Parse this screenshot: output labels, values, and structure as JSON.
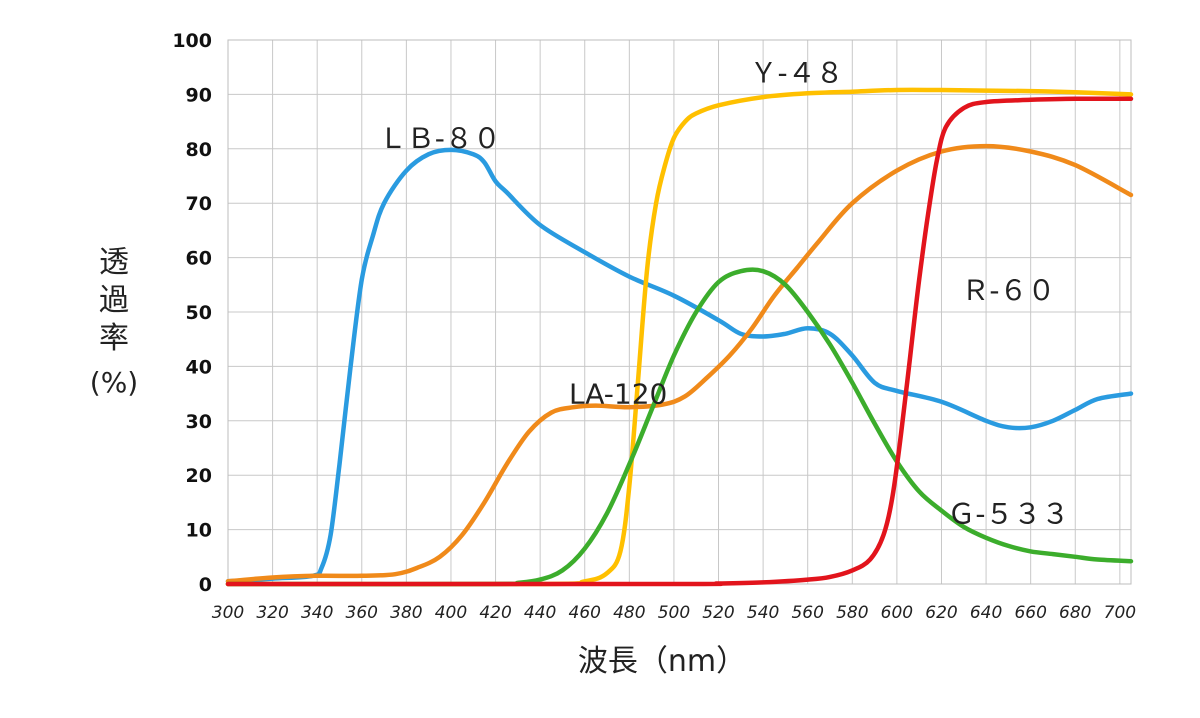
{
  "chart_data": {
    "type": "line",
    "title": "",
    "xlabel": "波長（nm）",
    "ylabel_lines": [
      "透",
      "過",
      "率",
      "(%)"
    ],
    "xlim": [
      300,
      705
    ],
    "ylim": [
      0,
      100
    ],
    "x_ticks": [
      300,
      320,
      340,
      360,
      380,
      400,
      420,
      440,
      460,
      480,
      500,
      520,
      540,
      560,
      580,
      600,
      620,
      640,
      660,
      680,
      700
    ],
    "y_ticks": [
      0,
      10,
      20,
      30,
      40,
      50,
      60,
      70,
      80,
      90,
      100
    ],
    "grid": true,
    "series": [
      {
        "name": "ＬＢ-８０",
        "color": "#2a9be0",
        "points": [
          [
            300,
            0.5
          ],
          [
            320,
            1
          ],
          [
            338,
            1.5
          ],
          [
            342,
            3
          ],
          [
            346,
            9
          ],
          [
            350,
            22
          ],
          [
            355,
            40
          ],
          [
            360,
            56
          ],
          [
            365,
            64
          ],
          [
            370,
            70
          ],
          [
            380,
            76
          ],
          [
            390,
            79
          ],
          [
            400,
            79.8
          ],
          [
            410,
            79
          ],
          [
            415,
            77.5
          ],
          [
            420,
            74
          ],
          [
            425,
            72
          ],
          [
            440,
            66
          ],
          [
            460,
            61
          ],
          [
            480,
            56.5
          ],
          [
            500,
            53
          ],
          [
            520,
            48.5
          ],
          [
            530,
            46
          ],
          [
            540,
            45.5
          ],
          [
            550,
            46
          ],
          [
            560,
            47
          ],
          [
            570,
            46
          ],
          [
            580,
            42
          ],
          [
            590,
            37
          ],
          [
            600,
            35.5
          ],
          [
            620,
            33.5
          ],
          [
            640,
            30
          ],
          [
            650,
            28.8
          ],
          [
            660,
            28.8
          ],
          [
            670,
            30
          ],
          [
            680,
            32
          ],
          [
            690,
            34
          ],
          [
            705,
            35
          ]
        ]
      },
      {
        "name": "Ｙ-４８",
        "color": "#ffc000",
        "points": [
          [
            300,
            0
          ],
          [
            440,
            0
          ],
          [
            460,
            0.5
          ],
          [
            470,
            2
          ],
          [
            476,
            6
          ],
          [
            480,
            18
          ],
          [
            484,
            38
          ],
          [
            488,
            58
          ],
          [
            492,
            70
          ],
          [
            496,
            77
          ],
          [
            500,
            82
          ],
          [
            505,
            85
          ],
          [
            510,
            86.5
          ],
          [
            520,
            88
          ],
          [
            540,
            89.5
          ],
          [
            560,
            90.2
          ],
          [
            580,
            90.5
          ],
          [
            600,
            90.8
          ],
          [
            620,
            90.8
          ],
          [
            640,
            90.7
          ],
          [
            660,
            90.6
          ],
          [
            680,
            90.4
          ],
          [
            705,
            90
          ]
        ]
      },
      {
        "name": "LA-120",
        "color": "#f08a1a",
        "points": [
          [
            300,
            0.5
          ],
          [
            320,
            1.2
          ],
          [
            340,
            1.5
          ],
          [
            360,
            1.5
          ],
          [
            375,
            1.8
          ],
          [
            385,
            3
          ],
          [
            395,
            5
          ],
          [
            405,
            9
          ],
          [
            415,
            15
          ],
          [
            425,
            22
          ],
          [
            435,
            28
          ],
          [
            445,
            31.5
          ],
          [
            455,
            32.5
          ],
          [
            465,
            32.8
          ],
          [
            480,
            32.5
          ],
          [
            495,
            33
          ],
          [
            505,
            34.5
          ],
          [
            515,
            38
          ],
          [
            525,
            42
          ],
          [
            535,
            47
          ],
          [
            545,
            53
          ],
          [
            555,
            58
          ],
          [
            565,
            63
          ],
          [
            580,
            70
          ],
          [
            600,
            76
          ],
          [
            620,
            79.5
          ],
          [
            640,
            80.5
          ],
          [
            660,
            79.5
          ],
          [
            680,
            77
          ],
          [
            705,
            71.5
          ]
        ]
      },
      {
        "name": "Ｇ-５３３",
        "color": "#3cad2c",
        "points": [
          [
            300,
            0
          ],
          [
            420,
            0
          ],
          [
            430,
            0.2
          ],
          [
            440,
            0.8
          ],
          [
            450,
            2.5
          ],
          [
            460,
            6.5
          ],
          [
            470,
            13
          ],
          [
            480,
            22
          ],
          [
            490,
            32
          ],
          [
            500,
            42
          ],
          [
            510,
            50
          ],
          [
            520,
            55.5
          ],
          [
            530,
            57.5
          ],
          [
            540,
            57.5
          ],
          [
            550,
            55
          ],
          [
            560,
            50
          ],
          [
            570,
            44
          ],
          [
            580,
            37
          ],
          [
            590,
            29.5
          ],
          [
            600,
            22.5
          ],
          [
            610,
            17
          ],
          [
            620,
            13.5
          ],
          [
            630,
            10.5
          ],
          [
            640,
            8.5
          ],
          [
            650,
            7
          ],
          [
            660,
            6
          ],
          [
            670,
            5.5
          ],
          [
            680,
            5
          ],
          [
            690,
            4.5
          ],
          [
            705,
            4.2
          ]
        ]
      },
      {
        "name": "Ｒ-６０",
        "color": "#e2141c",
        "points": [
          [
            300,
            0
          ],
          [
            500,
            0
          ],
          [
            520,
            0.1
          ],
          [
            540,
            0.3
          ],
          [
            560,
            0.8
          ],
          [
            570,
            1.3
          ],
          [
            580,
            2.5
          ],
          [
            588,
            4.5
          ],
          [
            594,
            9
          ],
          [
            598,
            16
          ],
          [
            602,
            28
          ],
          [
            606,
            42
          ],
          [
            610,
            56
          ],
          [
            614,
            68
          ],
          [
            618,
            78
          ],
          [
            622,
            84
          ],
          [
            630,
            87.5
          ],
          [
            640,
            88.6
          ],
          [
            660,
            89
          ],
          [
            680,
            89.2
          ],
          [
            705,
            89.2
          ]
        ]
      }
    ],
    "annotations": [
      {
        "series": "ＬＢ-８０",
        "text": "ＬＢ-８０",
        "x": 395,
        "y": 82
      },
      {
        "series": "Ｙ-４８",
        "text": "Ｙ-４８",
        "x": 555,
        "y": 94
      },
      {
        "series": "LA-120",
        "text": "LA-120",
        "x": 475,
        "y": 35
      },
      {
        "series": "Ｒ-６０",
        "text": "Ｒ-６０",
        "x": 650,
        "y": 54
      },
      {
        "series": "Ｇ-５３３",
        "text": "Ｇ-５３３",
        "x": 650,
        "y": 13
      }
    ]
  }
}
